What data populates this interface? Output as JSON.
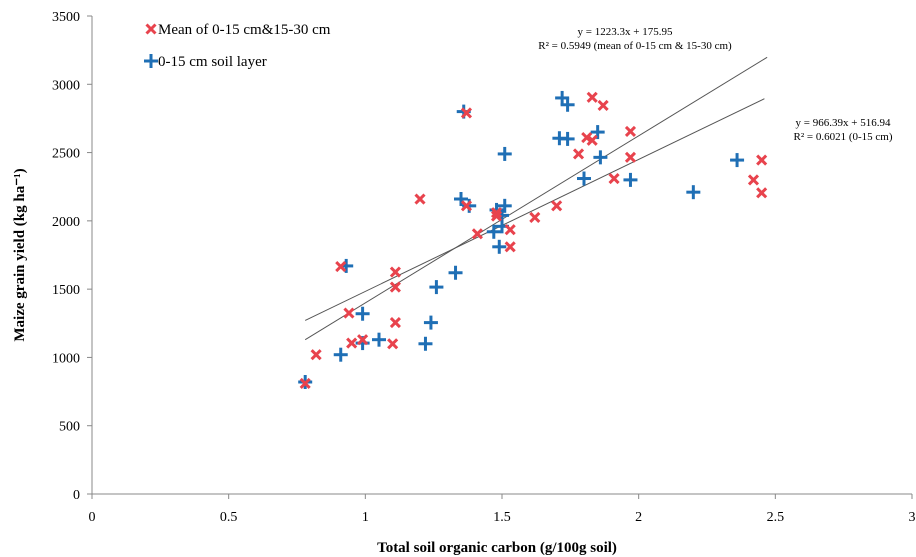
{
  "chart_data": {
    "type": "scatter",
    "xlabel": "Total soil organic carbon (g/100g soil)",
    "ylabel": "Maize grain yield (kg ha⁻¹)",
    "xlim": [
      0,
      3
    ],
    "ylim": [
      0,
      3500
    ],
    "x_ticks": [
      "0",
      "0.5",
      "1",
      "1.5",
      "2",
      "2.5",
      "3"
    ],
    "y_ticks": [
      "0",
      "500",
      "1000",
      "1500",
      "2000",
      "2500",
      "3000",
      "3500"
    ],
    "grid": false,
    "legend_position": "top-left",
    "series": [
      {
        "name": "Mean of 0-15 cm&15-30 cm",
        "marker": "x",
        "color": "#e8434d",
        "points": [
          [
            0.78,
            810
          ],
          [
            0.82,
            1020
          ],
          [
            0.91,
            1665
          ],
          [
            0.94,
            1325
          ],
          [
            0.95,
            1105
          ],
          [
            0.99,
            1130
          ],
          [
            1.1,
            1100
          ],
          [
            1.11,
            1625
          ],
          [
            1.11,
            1515
          ],
          [
            1.11,
            1255
          ],
          [
            1.2,
            2160
          ],
          [
            1.37,
            2110
          ],
          [
            1.37,
            2790
          ],
          [
            1.41,
            1905
          ],
          [
            1.48,
            2060
          ],
          [
            1.48,
            2035
          ],
          [
            1.53,
            1935
          ],
          [
            1.53,
            1810
          ],
          [
            1.62,
            2025
          ],
          [
            1.7,
            2110
          ],
          [
            1.78,
            2490
          ],
          [
            1.81,
            2610
          ],
          [
            1.83,
            2905
          ],
          [
            1.83,
            2590
          ],
          [
            1.87,
            2845
          ],
          [
            1.91,
            2310
          ],
          [
            1.97,
            2655
          ],
          [
            1.97,
            2465
          ],
          [
            2.42,
            2300
          ],
          [
            2.45,
            2445
          ],
          [
            2.45,
            2205
          ]
        ]
      },
      {
        "name": "0-15 cm soil layer",
        "marker": "plus",
        "color": "#1f6fb5",
        "points": [
          [
            0.78,
            820
          ],
          [
            0.91,
            1020
          ],
          [
            0.93,
            1670
          ],
          [
            0.99,
            1320
          ],
          [
            0.99,
            1105
          ],
          [
            1.05,
            1130
          ],
          [
            1.22,
            1100
          ],
          [
            1.24,
            1255
          ],
          [
            1.26,
            1515
          ],
          [
            1.33,
            1620
          ],
          [
            1.35,
            2160
          ],
          [
            1.36,
            2800
          ],
          [
            1.38,
            2110
          ],
          [
            1.47,
            1920
          ],
          [
            1.48,
            2080
          ],
          [
            1.49,
            1810
          ],
          [
            1.5,
            1960
          ],
          [
            1.5,
            2040
          ],
          [
            1.51,
            2110
          ],
          [
            1.51,
            2490
          ],
          [
            1.71,
            2605
          ],
          [
            1.72,
            2900
          ],
          [
            1.74,
            2850
          ],
          [
            1.74,
            2600
          ],
          [
            1.8,
            2310
          ],
          [
            1.85,
            2650
          ],
          [
            1.86,
            2465
          ],
          [
            1.97,
            2300
          ],
          [
            2.2,
            2210
          ],
          [
            2.36,
            2445
          ]
        ]
      }
    ],
    "trendlines": [
      {
        "slope": 1223.3,
        "intercept": 175.95,
        "x_range": [
          0.78,
          2.47
        ],
        "equation": "y = 1223.3x + 175.95",
        "r2": "R² = 0.5949 (mean of 0-15 cm & 15-30 cm)"
      },
      {
        "slope": 966.39,
        "intercept": 516.94,
        "x_range": [
          0.78,
          2.46
        ],
        "equation": "y = 966.39x + 516.94",
        "r2": "R² = 0.6021 (0-15 cm)"
      }
    ]
  }
}
